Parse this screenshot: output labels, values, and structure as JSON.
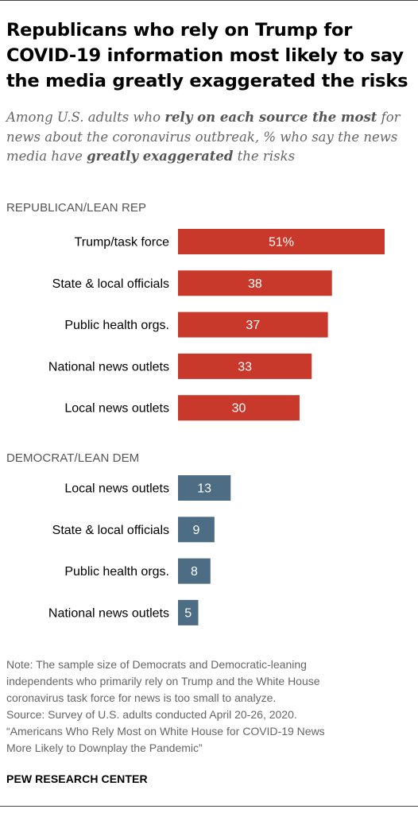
{
  "title_lines": [
    "Republicans who rely on Trump for",
    "COVID-19 information most likely to say",
    "the media greatly exaggerated the risks"
  ],
  "subtitle": {
    "p1": "Among U.S. adults who ",
    "b1": "rely on each source the most",
    "p2": " for news about the coronavirus outbreak, % who say the news media have ",
    "b2": "greatly exaggerated",
    "p3": " the risks"
  },
  "chart_data": {
    "type": "bar",
    "orientation": "horizontal",
    "xlim": [
      0,
      55
    ],
    "colors": {
      "rep": "#c8392b",
      "dem": "#4d6d85"
    },
    "groups": [
      {
        "key": "rep",
        "label": "REPUBLICAN/LEAN REP",
        "categories": [
          "Trump/task force",
          "State & local officials",
          "Public health orgs.",
          "National news outlets",
          "Local news outlets"
        ],
        "values": [
          51,
          38,
          37,
          33,
          30
        ],
        "labels": [
          "51%",
          "38",
          "37",
          "33",
          "30"
        ]
      },
      {
        "key": "dem",
        "label": "DEMOCRAT/LEAN DEM",
        "categories": [
          "Local news outlets",
          "State & local officials",
          "Public health orgs.",
          "National news outlets"
        ],
        "values": [
          13,
          9,
          8,
          5
        ],
        "labels": [
          "13",
          "9",
          "8",
          "5"
        ]
      }
    ]
  },
  "notes": [
    "Note: The sample size of Democrats and Democratic-leaning",
    "independents who primarily rely on Trump and the White House",
    "coronavirus task force for news is too small to analyze.",
    "Source: Survey of U.S. adults conducted April 20-26, 2020.",
    "“Americans Who Rely Most on White House for COVID-19 News",
    "More Likely to Downplay the Pandemic”"
  ],
  "brand": "PEW RESEARCH CENTER"
}
